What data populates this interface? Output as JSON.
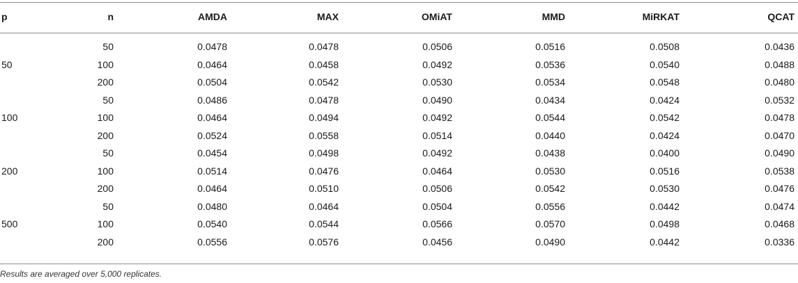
{
  "table": {
    "headers": [
      "p",
      "n",
      "AMDA",
      "MAX",
      "OMiAT",
      "MMD",
      "MiRKAT",
      "QCAT"
    ],
    "groups": [
      {
        "p": "50",
        "rows": [
          {
            "n": "50",
            "values": [
              "0.0478",
              "0.0478",
              "0.0506",
              "0.0516",
              "0.0508",
              "0.0436"
            ]
          },
          {
            "n": "100",
            "values": [
              "0.0464",
              "0.0458",
              "0.0492",
              "0.0536",
              "0.0540",
              "0.0488"
            ]
          },
          {
            "n": "200",
            "values": [
              "0.0504",
              "0.0542",
              "0.0530",
              "0.0534",
              "0.0548",
              "0.0480"
            ]
          }
        ]
      },
      {
        "p": "100",
        "rows": [
          {
            "n": "50",
            "values": [
              "0.0486",
              "0.0478",
              "0.0490",
              "0.0434",
              "0.0424",
              "0.0532"
            ]
          },
          {
            "n": "100",
            "values": [
              "0.0464",
              "0.0494",
              "0.0492",
              "0.0544",
              "0.0542",
              "0.0478"
            ]
          },
          {
            "n": "200",
            "values": [
              "0.0524",
              "0.0558",
              "0.0514",
              "0.0440",
              "0.0424",
              "0.0470"
            ]
          }
        ]
      },
      {
        "p": "200",
        "rows": [
          {
            "n": "50",
            "values": [
              "0.0454",
              "0.0498",
              "0.0492",
              "0.0438",
              "0.0400",
              "0.0490"
            ]
          },
          {
            "n": "100",
            "values": [
              "0.0514",
              "0.0476",
              "0.0464",
              "0.0530",
              "0.0516",
              "0.0538"
            ]
          },
          {
            "n": "200",
            "values": [
              "0.0464",
              "0.0510",
              "0.0506",
              "0.0542",
              "0.0530",
              "0.0476"
            ]
          }
        ]
      },
      {
        "p": "500",
        "rows": [
          {
            "n": "50",
            "values": [
              "0.0480",
              "0.0464",
              "0.0504",
              "0.0556",
              "0.0442",
              "0.0474"
            ]
          },
          {
            "n": "100",
            "values": [
              "0.0540",
              "0.0544",
              "0.0566",
              "0.0570",
              "0.0498",
              "0.0468"
            ]
          },
          {
            "n": "200",
            "values": [
              "0.0556",
              "0.0576",
              "0.0456",
              "0.0490",
              "0.0442",
              "0.0336"
            ]
          }
        ]
      }
    ],
    "footnote": "Results are averaged over 5,000 replicates."
  }
}
